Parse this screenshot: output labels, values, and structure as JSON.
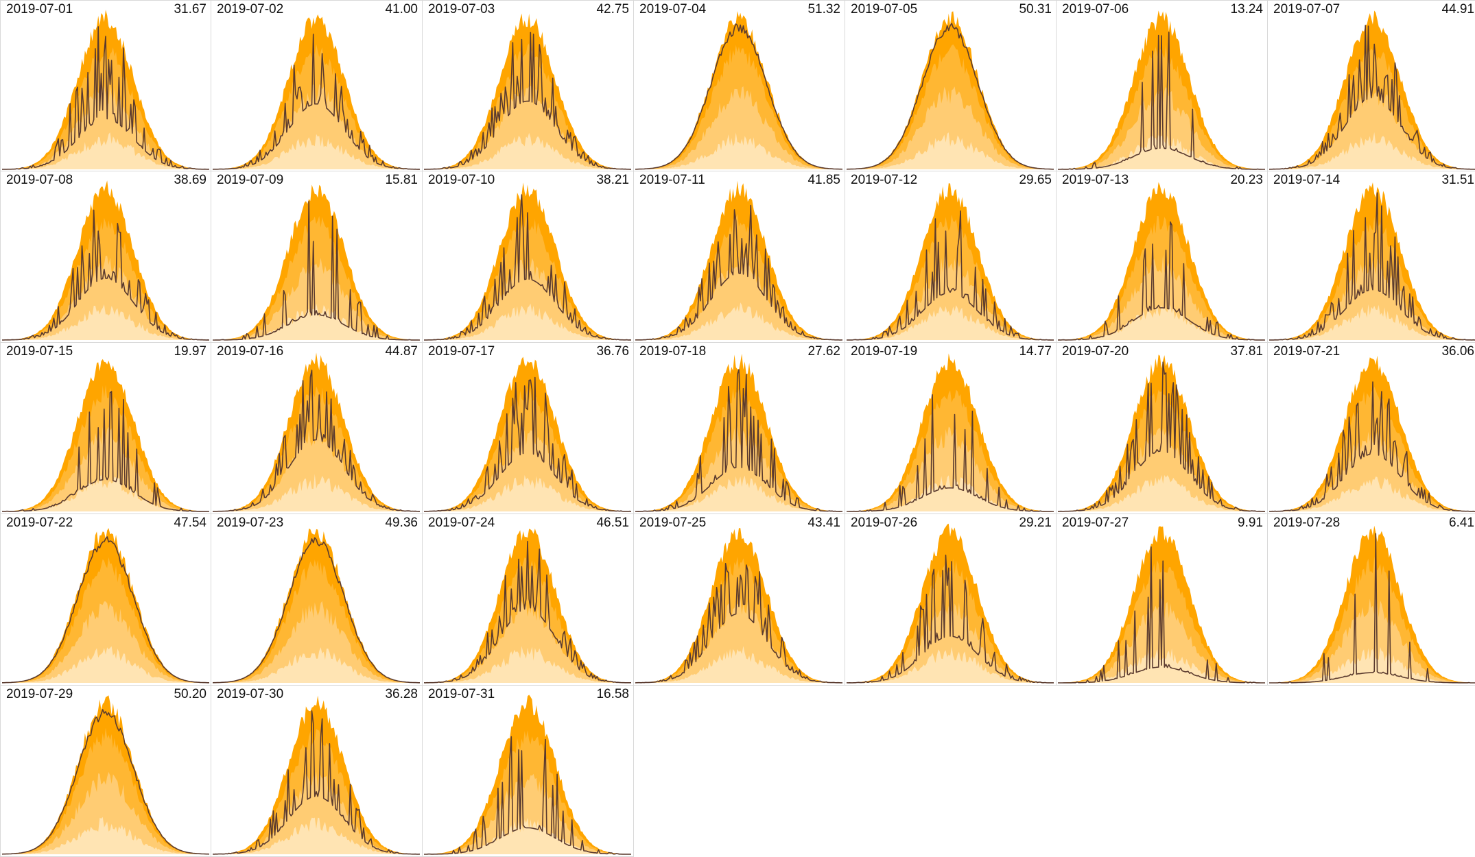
{
  "chart_data": {
    "type": "area",
    "layout": "small-multiples",
    "colors": {
      "band_max": "#FFA500",
      "band_upper": "#FFB733",
      "band_mid": "#FFCC73",
      "band_low": "#FFE4B3",
      "actual_line": "#5A3A2E",
      "grid_border": "#D8D8D8"
    },
    "panels": [
      {
        "date": "2019-07-01",
        "total": "31.67",
        "total_value": 31.67
      },
      {
        "date": "2019-07-02",
        "total": "41.00",
        "total_value": 41.0
      },
      {
        "date": "2019-07-03",
        "total": "42.75",
        "total_value": 42.75
      },
      {
        "date": "2019-07-04",
        "total": "51.32",
        "total_value": 51.32
      },
      {
        "date": "2019-07-05",
        "total": "50.31",
        "total_value": 50.31
      },
      {
        "date": "2019-07-06",
        "total": "13.24",
        "total_value": 13.24
      },
      {
        "date": "2019-07-07",
        "total": "44.91",
        "total_value": 44.91
      },
      {
        "date": "2019-07-08",
        "total": "38.69",
        "total_value": 38.69
      },
      {
        "date": "2019-07-09",
        "total": "15.81",
        "total_value": 15.81
      },
      {
        "date": "2019-07-10",
        "total": "38.21",
        "total_value": 38.21
      },
      {
        "date": "2019-07-11",
        "total": "41.85",
        "total_value": 41.85
      },
      {
        "date": "2019-07-12",
        "total": "29.65",
        "total_value": 29.65
      },
      {
        "date": "2019-07-13",
        "total": "20.23",
        "total_value": 20.23
      },
      {
        "date": "2019-07-14",
        "total": "31.51",
        "total_value": 31.51
      },
      {
        "date": "2019-07-15",
        "total": "19.97",
        "total_value": 19.97
      },
      {
        "date": "2019-07-16",
        "total": "44.87",
        "total_value": 44.87
      },
      {
        "date": "2019-07-17",
        "total": "36.76",
        "total_value": 36.76
      },
      {
        "date": "2019-07-18",
        "total": "27.62",
        "total_value": 27.62
      },
      {
        "date": "2019-07-19",
        "total": "14.77",
        "total_value": 14.77
      },
      {
        "date": "2019-07-20",
        "total": "37.81",
        "total_value": 37.81
      },
      {
        "date": "2019-07-21",
        "total": "36.06",
        "total_value": 36.06
      },
      {
        "date": "2019-07-22",
        "total": "47.54",
        "total_value": 47.54
      },
      {
        "date": "2019-07-23",
        "total": "49.36",
        "total_value": 49.36
      },
      {
        "date": "2019-07-24",
        "total": "46.51",
        "total_value": 46.51
      },
      {
        "date": "2019-07-25",
        "total": "43.41",
        "total_value": 43.41
      },
      {
        "date": "2019-07-26",
        "total": "29.21",
        "total_value": 29.21
      },
      {
        "date": "2019-07-27",
        "total": "9.91",
        "total_value": 9.91
      },
      {
        "date": "2019-07-28",
        "total": "6.41",
        "total_value": 6.41
      },
      {
        "date": "2019-07-29",
        "total": "50.20",
        "total_value": 50.2
      },
      {
        "date": "2019-07-30",
        "total": "36.28",
        "total_value": 36.28
      },
      {
        "date": "2019-07-31",
        "total": "16.58",
        "total_value": 16.58
      }
    ]
  }
}
